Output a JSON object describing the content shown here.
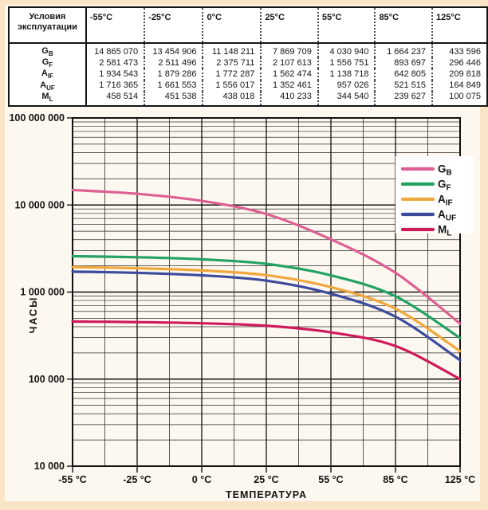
{
  "page": {
    "background": "#f9e4c8",
    "panel_background": "#fdf8ef"
  },
  "table": {
    "corner_lines": [
      "Условия",
      "эксплуатации"
    ],
    "columns": [
      "-55°C",
      "-25°C",
      "0°C",
      "25°C",
      "55°C",
      "85°C",
      "125°C"
    ]
  },
  "chart_data": {
    "type": "line",
    "title": "",
    "xlabel": "ТЕМПЕРАТУРА",
    "ylabel": "ЧАСЫ",
    "x_scale": "categorical",
    "y_scale": "log",
    "ylim": [
      10000,
      100000000
    ],
    "grid": true,
    "legend_position": "top-right",
    "categories": [
      "-55 °C",
      "-25 °C",
      "0 °C",
      "25 °C",
      "55 °C",
      "85 °C",
      "125 °C"
    ],
    "y_ticks": [
      "100 000 000",
      "10 000 000",
      "1 000 000",
      "100 000",
      "10 000"
    ],
    "y_tick_values": [
      100000000,
      10000000,
      1000000,
      100000,
      10000
    ],
    "grid_color": "#2c2c2c",
    "series": [
      {
        "name_main": "G",
        "name_sub": "B",
        "color": "#dd6093",
        "values": [
          14865070,
          13454906,
          11148211,
          7869709,
          4030940,
          1664237,
          433596
        ]
      },
      {
        "name_main": "G",
        "name_sub": "F",
        "color": "#24a263",
        "values": [
          2581473,
          2511496,
          2375711,
          2107613,
          1556751,
          893697,
          296446
        ]
      },
      {
        "name_main": "A",
        "name_sub": "IF",
        "color": "#f0a83e",
        "values": [
          1934543,
          1879286,
          1772287,
          1562474,
          1138718,
          642805,
          209818
        ]
      },
      {
        "name_main": "A",
        "name_sub": "UF",
        "color": "#3c4b9d",
        "values": [
          1716365,
          1661553,
          1556017,
          1352461,
          957026,
          521515,
          164849
        ]
      },
      {
        "name_main": "M",
        "name_sub": "L",
        "color": "#cf1a5a",
        "values": [
          458514,
          451538,
          438018,
          410233,
          344540,
          239627,
          100075
        ]
      }
    ]
  }
}
